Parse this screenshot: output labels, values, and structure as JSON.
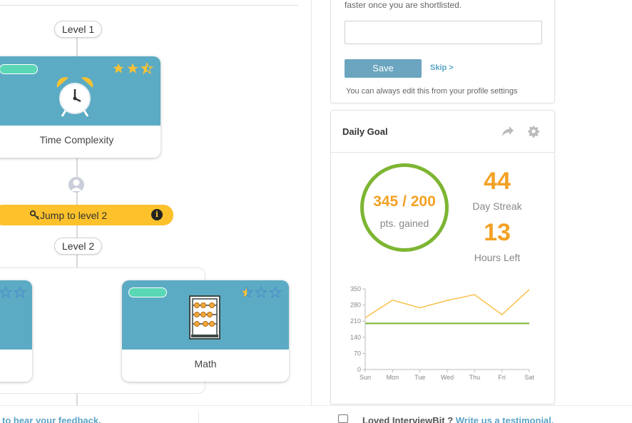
{
  "colors": {
    "card_blue": "#5cabc4",
    "progress_teal": "#5ad7b5",
    "star_yellow": "#f6c236",
    "star_outline": "#4c8fc9",
    "jump_yellow": "#fcc12b",
    "orange": "#f3a124",
    "green": "#7db532",
    "link_blue": "#5aa3c5",
    "save_blue": "#6ca5bf"
  },
  "path": {
    "level1_label": "Level 1",
    "level2_label": "Level 2",
    "jump_label": "Jump to level 2",
    "jump_icon": "key-icon",
    "info_glyph": "i",
    "cards": [
      {
        "title": "Time Complexity",
        "icon": "alarm-clock-icon",
        "stars_filled": 2.5,
        "stars_total": 3
      },
      {
        "title": "",
        "icon": "",
        "stars_filled": 0,
        "stars_total": 3
      },
      {
        "title": "Math",
        "icon": "abacus-icon",
        "stars_filled": 0.5,
        "stars_total": 3
      }
    ]
  },
  "profile": {
    "hint": "faster once you are shortlisted.",
    "input_value": "",
    "save_label": "Save",
    "skip_label": "Skip >",
    "note": "You can always edit this from your profile settings"
  },
  "daily_goal": {
    "title": "Daily Goal",
    "points_value": "345 / 200",
    "points_label": "pts. gained",
    "streak_value": "44",
    "streak_label": "Day Streak",
    "hours_value": "13",
    "hours_label": "Hours Left"
  },
  "chart_data": {
    "type": "line",
    "categories": [
      "Sun",
      "Mon",
      "Tue",
      "Wed",
      "Thu",
      "Fri",
      "Sat"
    ],
    "series": [
      {
        "values": [
          225,
          301,
          268,
          300,
          325,
          238,
          347
        ],
        "color": "#f9c04c"
      },
      {
        "values": [
          200,
          200,
          200,
          200,
          200,
          200,
          200
        ],
        "color": "#7db532"
      }
    ],
    "yticks": [
      "350",
      "280",
      "210",
      "140",
      "70",
      "0"
    ],
    "ylim": [
      0,
      350
    ],
    "grid": false
  },
  "footer": {
    "left_text": "to hear your feedback.",
    "loved_text": "Loved InterviewBit ?",
    "testimonial_link": "Write us a testimonial."
  }
}
